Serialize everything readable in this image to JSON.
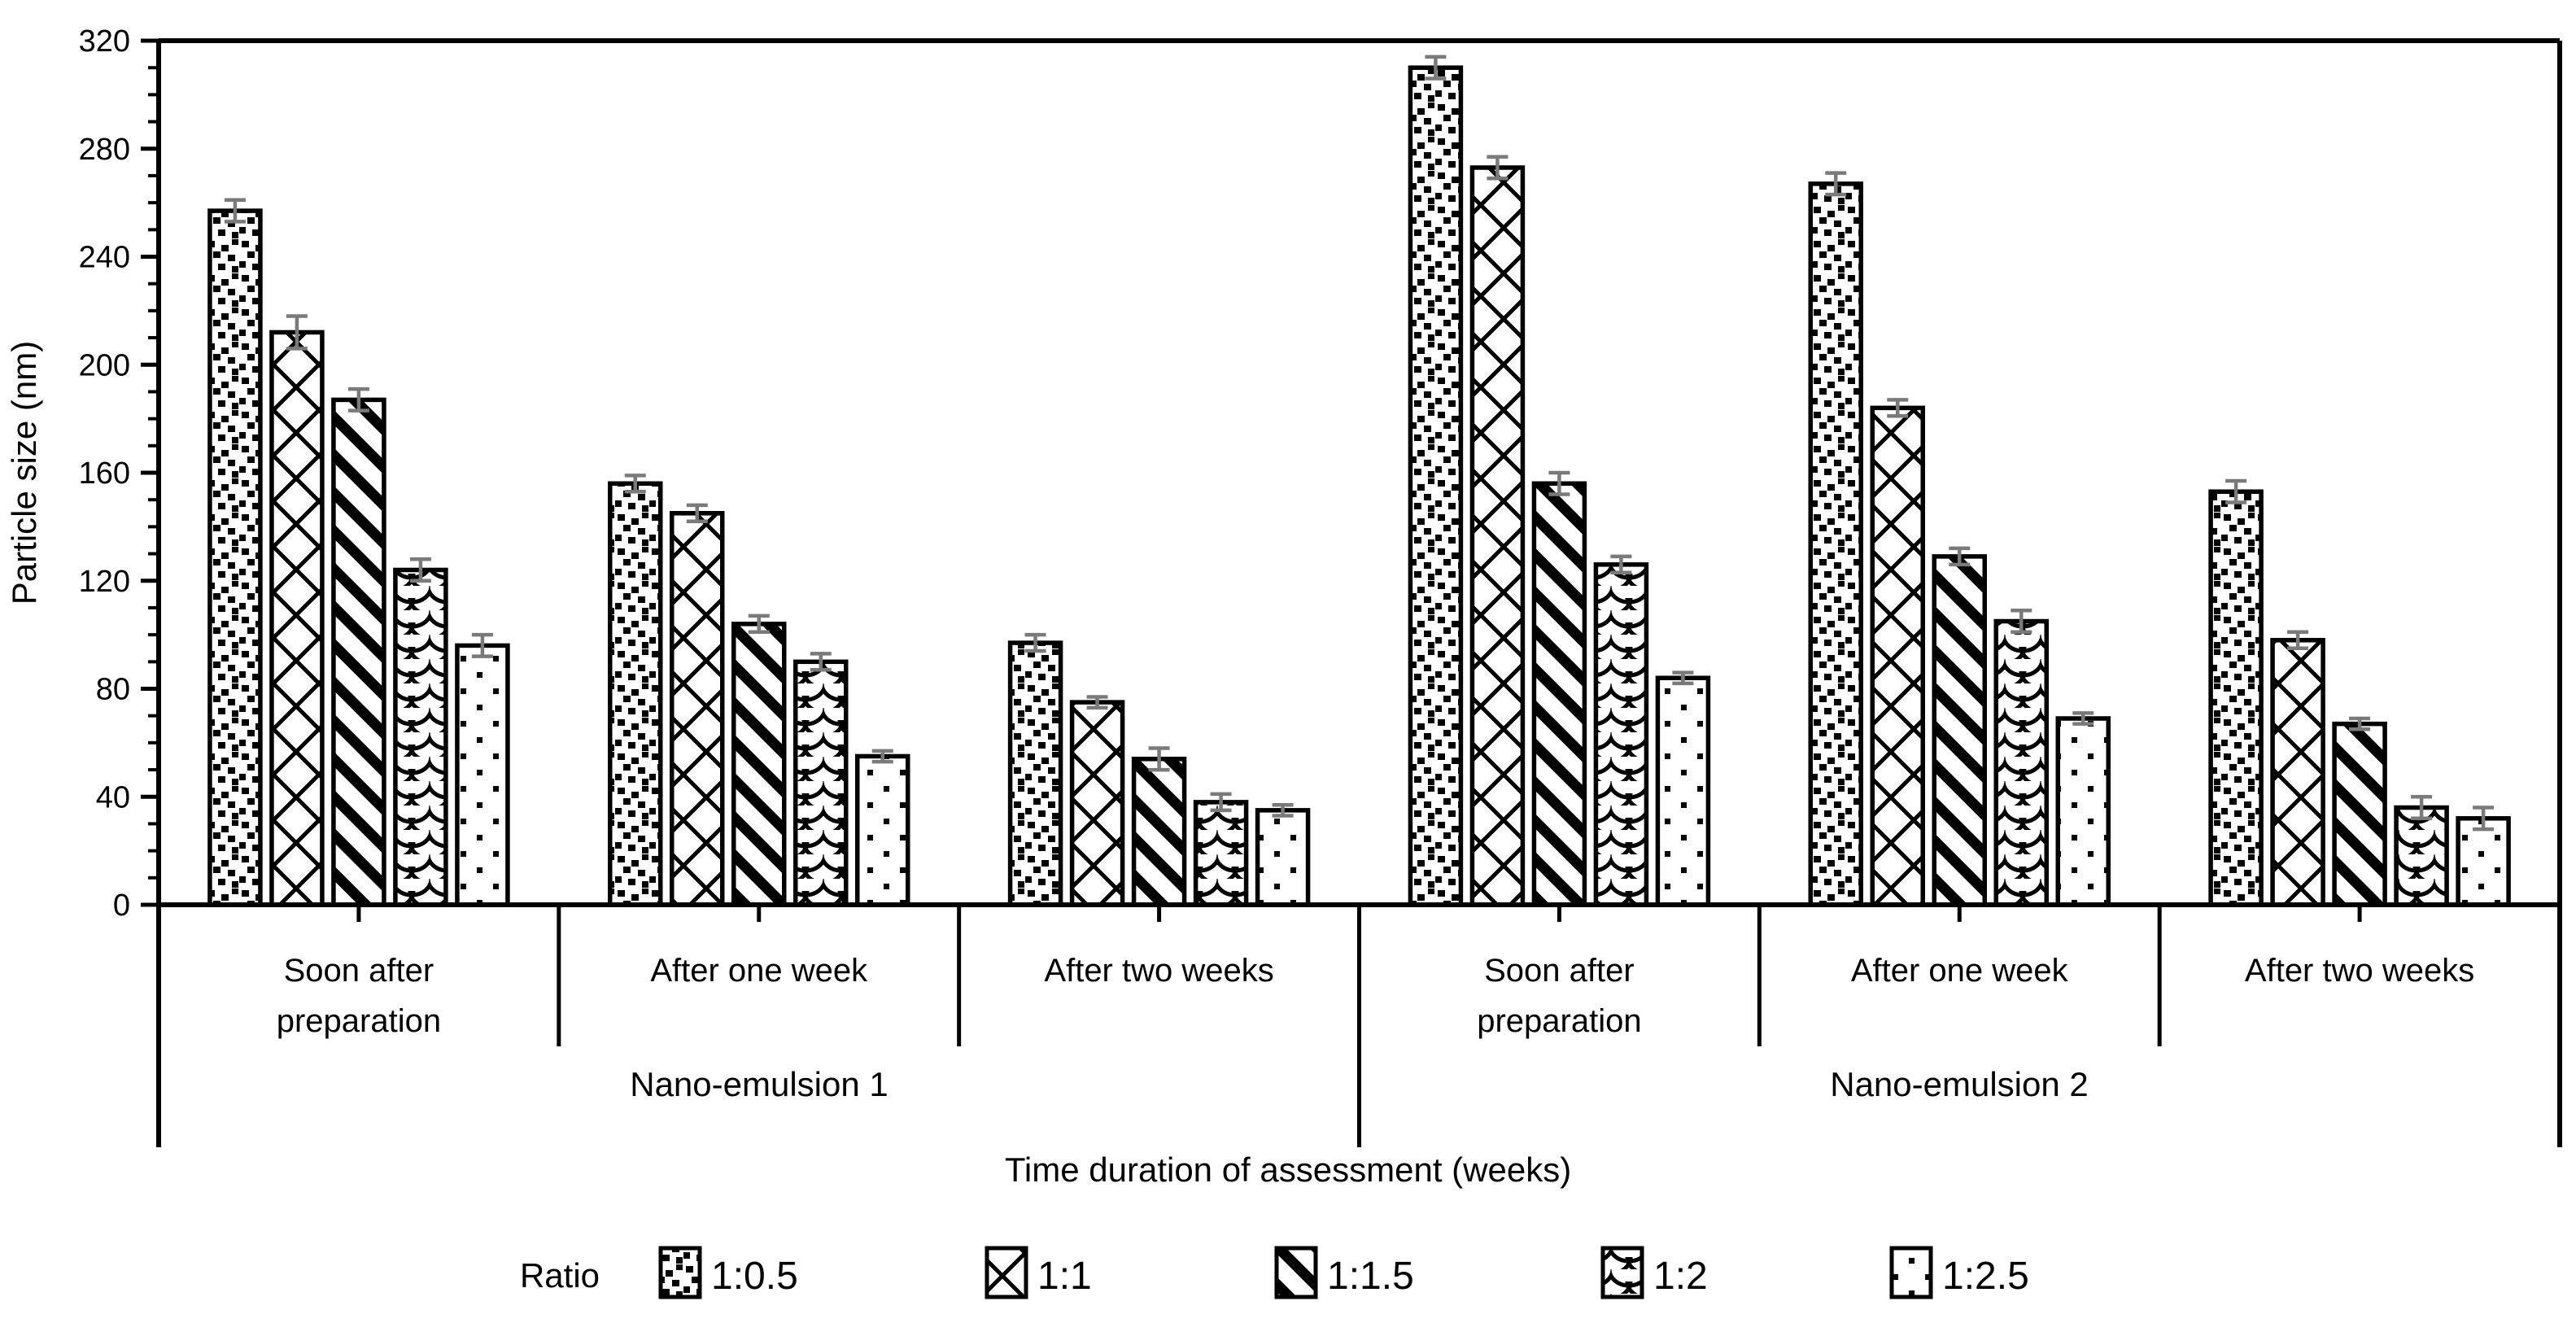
{
  "figure": {
    "background": "#ffffff",
    "text_color": "#000000",
    "bar_outline_color": "#000000",
    "error_bar_color": "#7a7a7a"
  },
  "chart_data": {
    "type": "bar",
    "title": "",
    "ylabel": "Particle size (nm)",
    "xlabel": "Time duration of assessment (weeks)",
    "ylim": [
      0,
      320
    ],
    "yticks": [
      0,
      40,
      80,
      120,
      160,
      200,
      240,
      280,
      320
    ],
    "minor_tick_step": 10,
    "grid": false,
    "legend_position": "bottom",
    "legend_title": "Ratio",
    "categories": [
      "Soon after preparation",
      "After one week",
      "After two weeks",
      "Soon after preparation",
      "After one week",
      "After two weeks"
    ],
    "category_groups": [
      {
        "label": "Nano-emulsion 1",
        "start": 0,
        "end": 2
      },
      {
        "label": "Nano-emulsion 2",
        "start": 3,
        "end": 5
      }
    ],
    "series": [
      {
        "name": "1:0.5",
        "pattern": "dense-dots",
        "values": [
          257,
          156,
          97,
          310,
          267,
          153
        ],
        "errors": [
          4,
          3,
          3,
          4,
          4,
          4
        ]
      },
      {
        "name": "1:1",
        "pattern": "crosshatch",
        "values": [
          212,
          145,
          75,
          273,
          184,
          98
        ],
        "errors": [
          6,
          3,
          2,
          4,
          3,
          3
        ]
      },
      {
        "name": "1:1.5",
        "pattern": "diagonal-stripes",
        "values": [
          187,
          104,
          54,
          156,
          129,
          67
        ],
        "errors": [
          4,
          3,
          4,
          4,
          3,
          2
        ]
      },
      {
        "name": "1:2",
        "pattern": "fish-scale",
        "values": [
          124,
          90,
          38,
          126,
          105,
          36
        ],
        "errors": [
          4,
          3,
          3,
          3,
          4,
          4
        ]
      },
      {
        "name": "1:2.5",
        "pattern": "sparse-dots",
        "values": [
          96,
          55,
          35,
          84,
          69,
          32
        ],
        "errors": [
          4,
          2,
          2,
          2,
          2,
          4
        ]
      }
    ]
  }
}
